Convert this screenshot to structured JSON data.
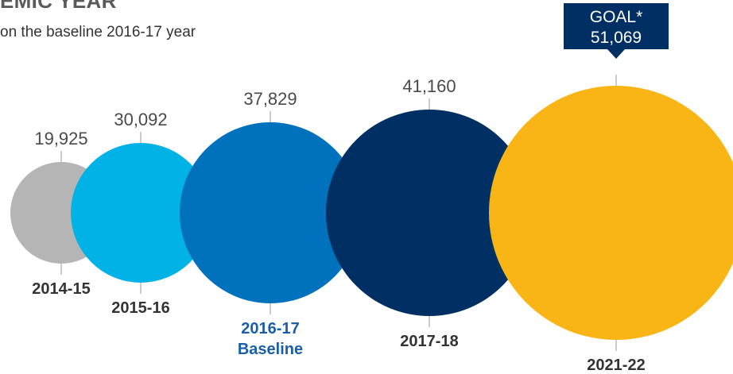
{
  "header": {
    "title": "EMIC YEAR",
    "subtitle": "on the baseline 2016-17 year"
  },
  "chart_data": {
    "type": "bubble",
    "title": "",
    "categories": [
      "2014-15",
      "2015-16",
      "2016-17",
      "2017-18",
      "2021-22"
    ],
    "values": [
      19925,
      30092,
      37829,
      41160,
      51069
    ],
    "value_labels": [
      "19,925",
      "30,092",
      "37,829",
      "41,160",
      "51,069"
    ],
    "category_sublabels": [
      "",
      "",
      "Baseline",
      "",
      ""
    ],
    "goal": {
      "category": "2021-22",
      "label": "GOAL*",
      "value_label": "51,069"
    },
    "colors": [
      "#b5b5b5",
      "#00b2e6",
      "#0071bc",
      "#003063",
      "#f9b515"
    ],
    "goal_box_color": "#003063",
    "baseline_label_color": "#1a5fa8",
    "legend": "none",
    "grid": false
  }
}
